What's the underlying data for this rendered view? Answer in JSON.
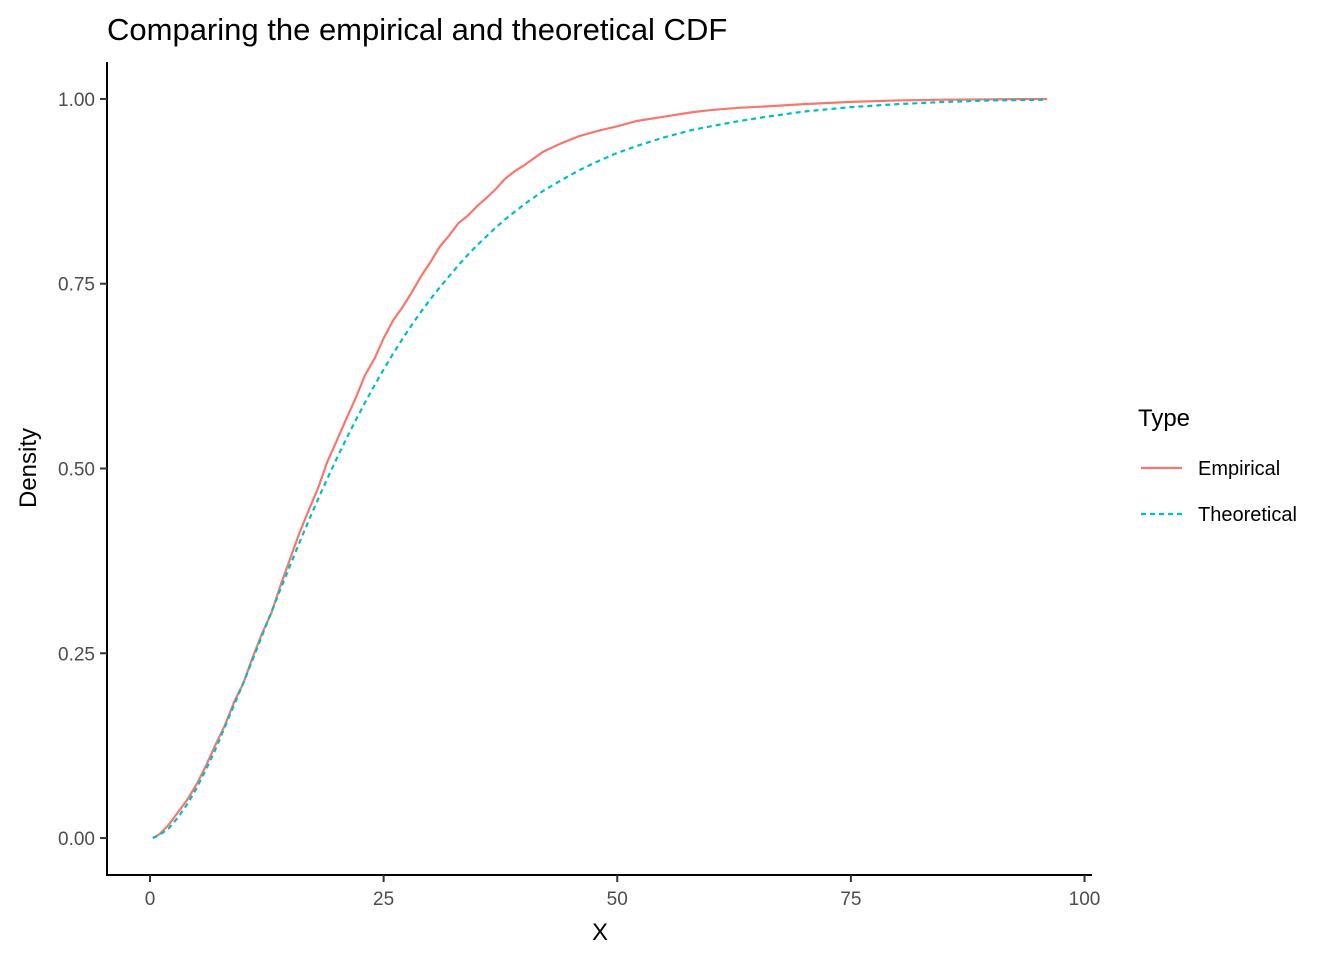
{
  "chart_data": {
    "type": "line",
    "title": "Comparing the empirical and theoretical CDF",
    "xlabel": "X",
    "ylabel": "Density",
    "xlim": [
      -4.6,
      100.8
    ],
    "ylim": [
      -0.05,
      1.05
    ],
    "x_ticks": [
      0,
      25,
      50,
      75,
      100
    ],
    "x_tick_labels": [
      "0",
      "25",
      "50",
      "75",
      "100"
    ],
    "y_ticks": [
      0,
      0.25,
      0.5,
      0.75,
      1.0
    ],
    "y_tick_labels": [
      "0.00",
      "0.25",
      "0.50",
      "0.75",
      "1.00"
    ],
    "grid": false,
    "legend": {
      "title": "Type",
      "placement": "right"
    },
    "series": [
      {
        "name": "Empirical",
        "color": "#F8766D",
        "dash": "solid",
        "x": [
          0.3,
          1,
          2,
          3,
          4,
          5,
          6,
          7,
          8,
          9,
          10,
          11,
          12,
          13,
          14,
          15,
          16,
          17,
          18,
          19,
          20,
          21,
          22,
          23,
          24,
          25,
          26,
          27,
          28,
          29,
          30,
          31,
          32,
          33,
          34,
          35,
          36,
          37,
          38,
          39,
          40,
          42,
          44,
          46,
          48,
          50,
          52,
          55,
          58,
          60,
          63,
          66,
          70,
          75,
          80,
          85,
          90,
          96
        ],
        "y": [
          0.0,
          0.005,
          0.018,
          0.035,
          0.052,
          0.073,
          0.098,
          0.126,
          0.152,
          0.184,
          0.21,
          0.245,
          0.277,
          0.305,
          0.343,
          0.378,
          0.413,
          0.444,
          0.474,
          0.51,
          0.538,
          0.567,
          0.595,
          0.626,
          0.648,
          0.676,
          0.7,
          0.718,
          0.738,
          0.76,
          0.779,
          0.8,
          0.815,
          0.832,
          0.842,
          0.855,
          0.866,
          0.878,
          0.892,
          0.902,
          0.91,
          0.928,
          0.94,
          0.95,
          0.957,
          0.963,
          0.97,
          0.976,
          0.982,
          0.985,
          0.988,
          0.99,
          0.993,
          0.996,
          0.998,
          0.999,
          0.9995,
          1.0
        ]
      },
      {
        "name": "Theoretical",
        "color": "#00BFC4",
        "dash": "dashed",
        "x": [
          0.3,
          1,
          2,
          3,
          4,
          5,
          6,
          7,
          8,
          9,
          10,
          11,
          12,
          13,
          14,
          15,
          16,
          17,
          18,
          19,
          20,
          21,
          22,
          23,
          24,
          25,
          26,
          27,
          28,
          29,
          30,
          31,
          32,
          33,
          34,
          35,
          36,
          37,
          38,
          39,
          40,
          42,
          44,
          46,
          48,
          50,
          52,
          55,
          58,
          60,
          63,
          66,
          70,
          75,
          80,
          85,
          90,
          96
        ],
        "y": [
          0.0,
          0.004,
          0.013,
          0.028,
          0.046,
          0.068,
          0.093,
          0.12,
          0.15,
          0.18,
          0.21,
          0.242,
          0.274,
          0.306,
          0.338,
          0.369,
          0.4,
          0.43,
          0.459,
          0.487,
          0.514,
          0.54,
          0.565,
          0.589,
          0.612,
          0.634,
          0.655,
          0.675,
          0.694,
          0.712,
          0.729,
          0.745,
          0.76,
          0.775,
          0.789,
          0.802,
          0.814,
          0.826,
          0.837,
          0.847,
          0.857,
          0.875,
          0.89,
          0.904,
          0.916,
          0.927,
          0.936,
          0.948,
          0.958,
          0.963,
          0.97,
          0.976,
          0.983,
          0.989,
          0.993,
          0.996,
          0.998,
          0.999
        ]
      }
    ]
  }
}
